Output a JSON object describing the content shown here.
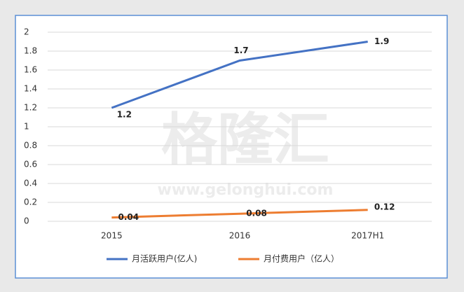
{
  "chart_data": {
    "type": "line",
    "categories": [
      "2015",
      "2016",
      "2017H1"
    ],
    "series": [
      {
        "name": "月活跃用户(亿人)",
        "color": "#4472c4",
        "values": [
          1.2,
          1.7,
          1.9
        ]
      },
      {
        "name": "月付费用户（亿人）",
        "color": "#ed7d31",
        "values": [
          0.04,
          0.08,
          0.12
        ]
      }
    ],
    "ylim": [
      0,
      2
    ],
    "yticks": [
      0,
      0.2,
      0.4,
      0.6,
      0.8,
      1,
      1.2,
      1.4,
      1.6,
      1.8,
      2
    ],
    "grid": true,
    "legend": "bottom",
    "watermark": {
      "text": "格隆汇",
      "url": "www.gelonghui.com"
    }
  }
}
